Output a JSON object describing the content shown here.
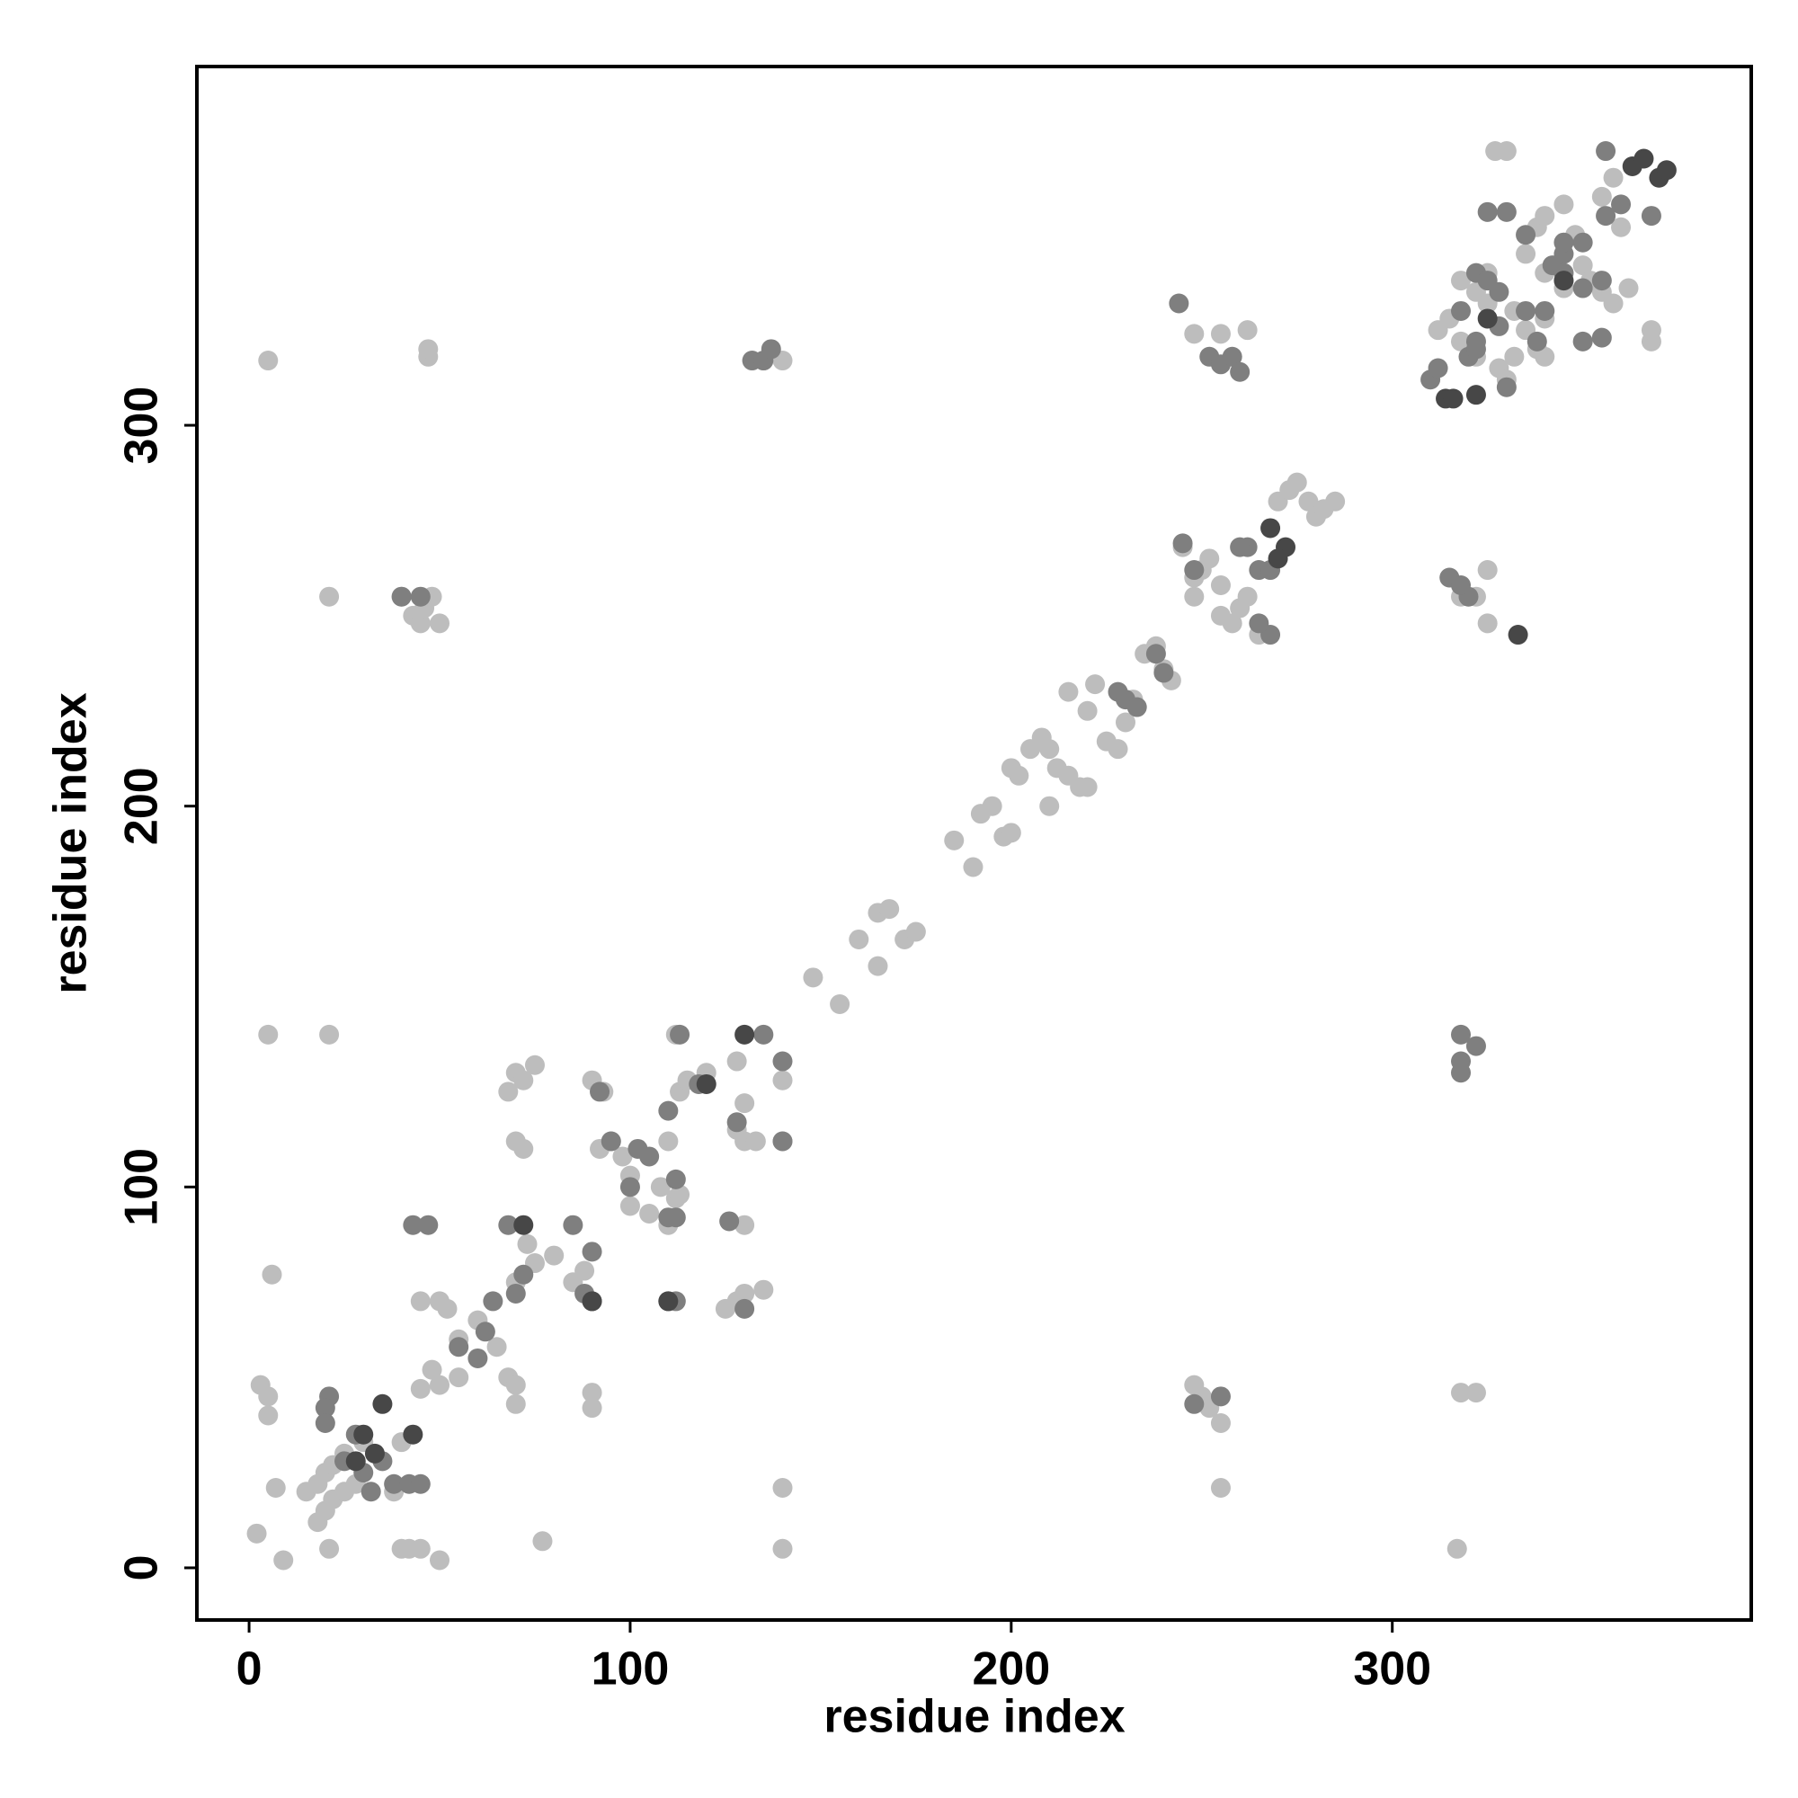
{
  "chart_data": {
    "type": "scatter",
    "x_label": "residue index",
    "y_label": "residue index",
    "xlim": [
      -13.7,
      394.2
    ],
    "ylim": [
      -13.7,
      394.2
    ],
    "xticks": [
      0,
      100,
      200,
      300
    ],
    "yticks": [
      0,
      100,
      200,
      300
    ],
    "grid": false,
    "series": [
      {
        "color": "#bdbdbd",
        "x": [
          15,
          18,
          20,
          22,
          25,
          18,
          20,
          22,
          25,
          28,
          30,
          5,
          5,
          3,
          7,
          2,
          9,
          6,
          5,
          21,
          21,
          40,
          42,
          45,
          50,
          38,
          40,
          45,
          50,
          52,
          50,
          55,
          68,
          70,
          70,
          77,
          90,
          90,
          140,
          140,
          255,
          255,
          248,
          250,
          252,
          317,
          318,
          322,
          45,
          48,
          55,
          60,
          65,
          70,
          73,
          75,
          80,
          85,
          88,
          70,
          72,
          75,
          68,
          70,
          72,
          92,
          95,
          98,
          100,
          100,
          105,
          110,
          112,
          108,
          113,
          110,
          113,
          115,
          120,
          128,
          128,
          130,
          130,
          133,
          125,
          128,
          130,
          135,
          140,
          140,
          130,
          112,
          90,
          93,
          148,
          155,
          160,
          165,
          165,
          168,
          172,
          175,
          185,
          190,
          192,
          195,
          198,
          200,
          200,
          202,
          205,
          208,
          210,
          212,
          210,
          215,
          218,
          220,
          215,
          220,
          222,
          225,
          228,
          230,
          232,
          235,
          238,
          240,
          242,
          245,
          248,
          250,
          252,
          255,
          248,
          255,
          258,
          260,
          262,
          265,
          270,
          273,
          275,
          278,
          280,
          282,
          285,
          40,
          43,
          45,
          48,
          50,
          46,
          21,
          47,
          47,
          5,
          135,
          140,
          248,
          255,
          262,
          315,
          318,
          322,
          325,
          325,
          312,
          315,
          318,
          322,
          318,
          325,
          322,
          328,
          330,
          332,
          335,
          338,
          340,
          335,
          338,
          340,
          345,
          348,
          350,
          352,
          355,
          358,
          355,
          358,
          360,
          368,
          368,
          327,
          330,
          332,
          340,
          345,
          362,
          325,
          340
        ],
        "values": [
          20,
          22,
          25,
          27,
          30,
          12,
          15,
          18,
          20,
          22,
          33,
          45,
          40,
          48,
          21,
          9,
          2,
          77,
          140,
          140,
          5,
          5,
          5,
          5,
          2,
          20,
          33,
          70,
          70,
          68,
          48,
          50,
          50,
          43,
          48,
          7,
          46,
          42,
          21,
          5,
          21,
          38,
          48,
          45,
          42,
          5,
          46,
          46,
          47,
          52,
          60,
          65,
          58,
          75,
          85,
          80,
          82,
          75,
          78,
          130,
          128,
          132,
          125,
          112,
          110,
          110,
          112,
          108,
          103,
          95,
          93,
          90,
          97,
          100,
          98,
          112,
          125,
          128,
          130,
          133,
          115,
          112,
          122,
          112,
          68,
          70,
          72,
          73,
          128,
          112,
          90,
          140,
          128,
          125,
          155,
          148,
          165,
          158,
          172,
          173,
          165,
          167,
          191,
          184,
          198,
          200,
          192,
          193,
          210,
          208,
          215,
          218,
          215,
          210,
          200,
          208,
          205,
          205,
          230,
          225,
          232,
          217,
          215,
          222,
          228,
          240,
          242,
          236,
          233,
          268,
          260,
          262,
          265,
          258,
          255,
          250,
          248,
          252,
          255,
          245,
          280,
          283,
          285,
          280,
          276,
          278,
          280,
          255,
          250,
          248,
          255,
          248,
          252,
          255,
          318,
          320,
          317,
          317,
          317,
          324,
          324,
          325,
          260,
          255,
          255,
          248,
          262,
          325,
          328,
          322,
          318,
          338,
          340,
          335,
          315,
          312,
          330,
          325,
          320,
          328,
          345,
          352,
          355,
          358,
          350,
          342,
          338,
          335,
          332,
          360,
          365,
          352,
          322,
          325,
          372,
          372,
          318,
          340,
          336,
          336,
          332,
          318
        ]
      },
      {
        "color": "#7f7f7f",
        "x": [
          21,
          20,
          20,
          25,
          28,
          30,
          32,
          35,
          38,
          42,
          45,
          43,
          47,
          255,
          248,
          318,
          318,
          318,
          322,
          68,
          72,
          70,
          62,
          64,
          60,
          55,
          85,
          90,
          90,
          88,
          92,
          95,
          100,
          102,
          105,
          110,
          112,
          110,
          112,
          110,
          112,
          113,
          118,
          126,
          128,
          135,
          140,
          140,
          130,
          228,
          230,
          233,
          238,
          245,
          248,
          262,
          265,
          268,
          260,
          268,
          265,
          240,
          40,
          45,
          132,
          135,
          137,
          244,
          252,
          255,
          258,
          260,
          315,
          320,
          318,
          310,
          312,
          320,
          322,
          318,
          322,
          325,
          328,
          330,
          335,
          340,
          338,
          345,
          342,
          350,
          355,
          345,
          356,
          360,
          350,
          355,
          350,
          322,
          328,
          325,
          330,
          345,
          356,
          368,
          335
        ],
        "values": [
          45,
          42,
          38,
          28,
          35,
          25,
          20,
          28,
          22,
          22,
          22,
          90,
          90,
          45,
          43,
          140,
          133,
          130,
          137,
          90,
          77,
          72,
          62,
          70,
          55,
          58,
          90,
          83,
          70,
          72,
          125,
          112,
          100,
          110,
          108,
          92,
          102,
          120,
          92,
          70,
          70,
          140,
          127,
          91,
          117,
          140,
          133,
          112,
          68,
          230,
          228,
          226,
          240,
          269,
          262,
          268,
          262,
          245,
          268,
          262,
          248,
          235,
          255,
          255,
          317,
          317,
          320,
          332,
          318,
          316,
          318,
          314,
          260,
          255,
          258,
          312,
          315,
          318,
          322,
          330,
          340,
          338,
          335,
          310,
          330,
          330,
          322,
          345,
          342,
          336,
          338,
          340,
          355,
          358,
          322,
          323,
          348,
          320,
          326,
          356,
          356,
          348,
          372,
          355,
          350
        ]
      },
      {
        "color": "#474747",
        "x": [
          35,
          43,
          30,
          33,
          28,
          72,
          90,
          130,
          120,
          110,
          268,
          272,
          270,
          333,
          314,
          316,
          322,
          363,
          366,
          370,
          372,
          345,
          325
        ],
        "values": [
          43,
          35,
          35,
          30,
          28,
          90,
          70,
          140,
          127,
          70,
          273,
          268,
          265,
          245,
          307,
          307,
          308,
          368,
          370,
          365,
          367,
          338,
          328
        ]
      }
    ]
  }
}
